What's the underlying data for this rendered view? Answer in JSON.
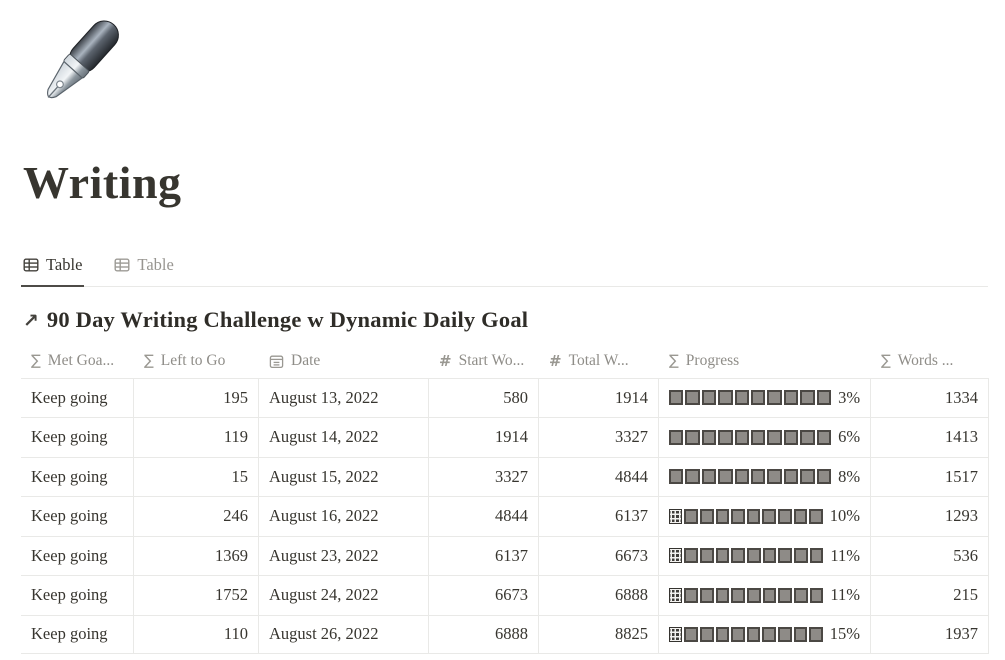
{
  "page": {
    "title": "Writing",
    "icon": "fountain-pen-emoji"
  },
  "tabs": [
    {
      "label": "Table",
      "icon": "table-view-icon",
      "active": true
    },
    {
      "label": "Table",
      "icon": "table-view-icon",
      "active": false
    }
  ],
  "collection": {
    "arrow": "↗",
    "title": "90 Day Writing Challenge w Dynamic Daily Goal"
  },
  "table": {
    "columns": [
      {
        "key": "met_goal",
        "label": "Met Goa...",
        "icon": "sigma-formula-icon",
        "align": "left"
      },
      {
        "key": "left_to_go",
        "label": "Left to Go",
        "icon": "sigma-formula-icon",
        "align": "right"
      },
      {
        "key": "date",
        "label": "Date",
        "icon": "calendar-icon",
        "align": "left"
      },
      {
        "key": "start_words",
        "label": "Start Wo...",
        "icon": "hash-number-icon",
        "align": "right"
      },
      {
        "key": "total_words",
        "label": "Total W...",
        "icon": "hash-number-icon",
        "align": "right"
      },
      {
        "key": "progress",
        "label": "Progress",
        "icon": "sigma-formula-icon",
        "align": "left"
      },
      {
        "key": "words",
        "label": "Words ...",
        "icon": "sigma-formula-icon",
        "align": "right"
      }
    ],
    "rows": [
      {
        "met_goal": "Keep going",
        "left_to_go": "195",
        "date": "August 13, 2022",
        "start_words": "580",
        "total_words": "1914",
        "progress": {
          "filled": 0,
          "empty": 10,
          "percent": "3%"
        },
        "words": "1334"
      },
      {
        "met_goal": "Keep going",
        "left_to_go": "119",
        "date": "August 14, 2022",
        "start_words": "1914",
        "total_words": "3327",
        "progress": {
          "filled": 0,
          "empty": 10,
          "percent": "6%"
        },
        "words": "1413"
      },
      {
        "met_goal": "Keep going",
        "left_to_go": "15",
        "date": "August 15, 2022",
        "start_words": "3327",
        "total_words": "4844",
        "progress": {
          "filled": 0,
          "empty": 10,
          "percent": "8%"
        },
        "words": "1517"
      },
      {
        "met_goal": "Keep going",
        "left_to_go": "246",
        "date": "August 16, 2022",
        "start_words": "4844",
        "total_words": "6137",
        "progress": {
          "filled": 1,
          "empty": 9,
          "percent": "10%"
        },
        "words": "1293"
      },
      {
        "met_goal": "Keep going",
        "left_to_go": "1369",
        "date": "August 23, 2022",
        "start_words": "6137",
        "total_words": "6673",
        "progress": {
          "filled": 1,
          "empty": 9,
          "percent": "11%"
        },
        "words": "536"
      },
      {
        "met_goal": "Keep going",
        "left_to_go": "1752",
        "date": "August 24, 2022",
        "start_words": "6673",
        "total_words": "6888",
        "progress": {
          "filled": 1,
          "empty": 9,
          "percent": "11%"
        },
        "words": "215"
      },
      {
        "met_goal": "Keep going",
        "left_to_go": "110",
        "date": "August 26, 2022",
        "start_words": "6888",
        "total_words": "8825",
        "progress": {
          "filled": 1,
          "empty": 9,
          "percent": "15%"
        },
        "words": "1937"
      }
    ]
  },
  "colors": {
    "text": "#37352f",
    "muted_text": "#8f8d88",
    "border": "#e9e9e7",
    "active_tab_underline": "#4d4b47",
    "square_empty_fill": "#8e8b87",
    "square_empty_border": "#4b4844",
    "square_filled_dark": "#3e3c39"
  }
}
